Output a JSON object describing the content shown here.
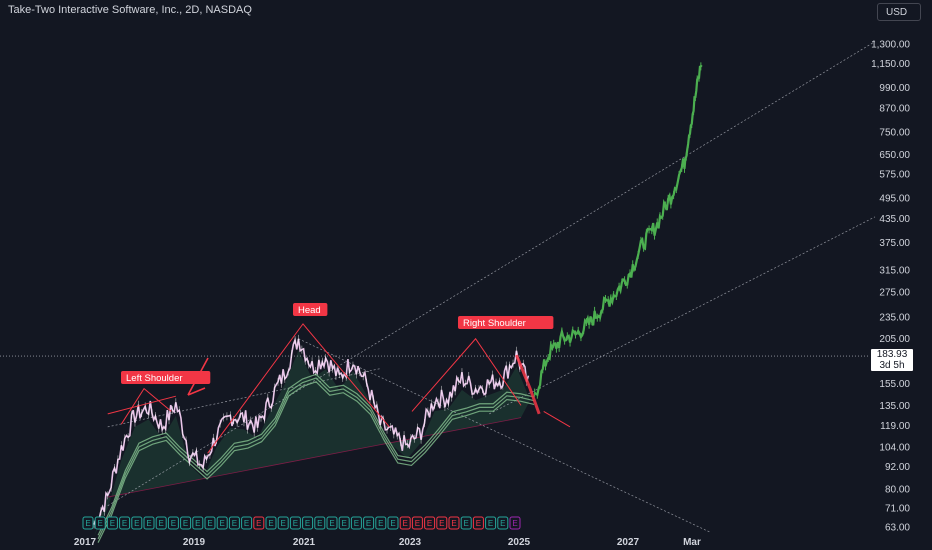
{
  "header": {
    "title": "Take-Two Interactive Software, Inc., 2D, NASDAQ",
    "currency": "USD"
  },
  "price_tag": {
    "price": "183.93",
    "countdown": "3d 5h"
  },
  "colors": {
    "background": "#131722",
    "pattern_line": "#f23645",
    "label_bg": "#f23645",
    "projection": "#4caf50",
    "price_candles": "#e8c5e8",
    "ma_band": "#7fb889",
    "earnings_badge": "#26a69a",
    "earnings_badge_red": "#f23645",
    "earnings_badge_purple": "#9c27b0"
  },
  "chart_data": {
    "type": "line",
    "title": "Take-Two Interactive Software, Inc., 2D, NASDAQ",
    "xlabel": "",
    "ylabel": "",
    "y_scale": "log",
    "ylim": [
      60,
      1450
    ],
    "x_ticks": [
      "2017",
      "2019",
      "2021",
      "2023",
      "2025",
      "2027",
      "Mar"
    ],
    "y_ticks": [
      1300,
      1150,
      990,
      870,
      750,
      650,
      575,
      495,
      435,
      375,
      315,
      275,
      235,
      205,
      155,
      135,
      119,
      104,
      92,
      80,
      71,
      63
    ],
    "y_tick_labels": [
      "1,300.00",
      "1,150.00",
      "990.00",
      "870.00",
      "750.00",
      "650.00",
      "575.00",
      "495.00",
      "435.00",
      "375.00",
      "315.00",
      "275.00",
      "235.00",
      "205.00",
      "155.00",
      "135.00",
      "119.00",
      "104.00",
      "92.00",
      "80.00",
      "71.00",
      "63.00"
    ],
    "last_price": 183.93,
    "series": [
      {
        "type": "price",
        "x": [
          "2017-03",
          "2017-06",
          "2017-09",
          "2017-12",
          "2018-03",
          "2018-06",
          "2018-09",
          "2018-12",
          "2019-03",
          "2019-06",
          "2019-09",
          "2019-12",
          "2020-03",
          "2020-06",
          "2020-09",
          "2020-12",
          "2021-03",
          "2021-06",
          "2021-09",
          "2021-12",
          "2022-03",
          "2022-06",
          "2022-09",
          "2022-12",
          "2023-03",
          "2023-06",
          "2023-09",
          "2023-12",
          "2024-03",
          "2024-06",
          "2024-09",
          "2024-12",
          "2025-03"
        ],
        "y": [
          64,
          76,
          103,
          127,
          133,
          118,
          136,
          100,
          92,
          112,
          126,
          125,
          118,
          141,
          166,
          205,
          172,
          182,
          160,
          180,
          155,
          120,
          112,
          104,
          115,
          140,
          142,
          160,
          150,
          155,
          160,
          185,
          150
        ]
      },
      {
        "type": "projection",
        "x": [
          "2025-04",
          "2025-07",
          "2025-10",
          "2026-01",
          "2026-04",
          "2026-07",
          "2026-10",
          "2027-01",
          "2027-04",
          "2027-07",
          "2027-10",
          "2028-01",
          "2028-03",
          "2028-05"
        ],
        "y": [
          142,
          185,
          205,
          210,
          225,
          250,
          275,
          310,
          375,
          420,
          500,
          620,
          870,
          1200
        ]
      }
    ],
    "annotations": [
      "Left Shoulder",
      "Head",
      "Right Shoulder"
    ],
    "earnings_badge_letter": "E"
  }
}
